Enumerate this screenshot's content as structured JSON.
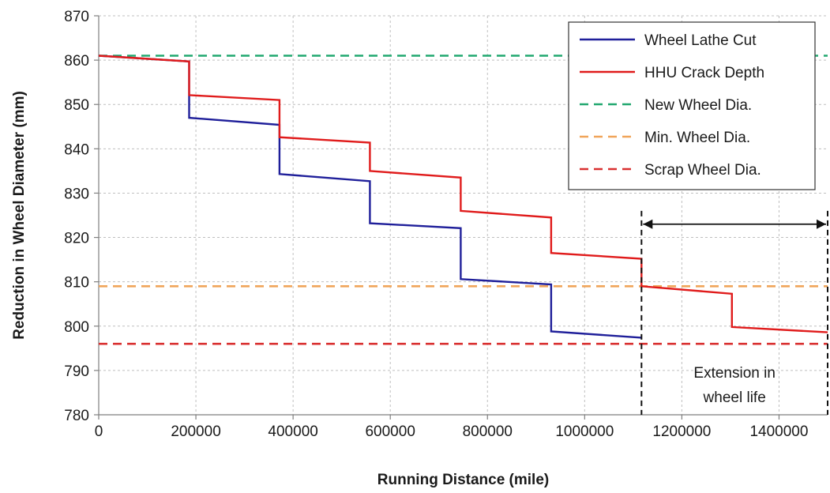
{
  "chart_data": {
    "type": "line",
    "title": "",
    "xlabel": "Running Distance (mile)",
    "ylabel": "Reduction in Wheel Diameter (mm)",
    "xlim": [
      0,
      1500000
    ],
    "ylim": [
      780,
      870
    ],
    "x_ticks": [
      {
        "value": 0,
        "label": "0"
      },
      {
        "value": 200000,
        "label": "200000"
      },
      {
        "value": 400000,
        "label": "400000"
      },
      {
        "value": 600000,
        "label": "600000"
      },
      {
        "value": 800000,
        "label": "800000"
      },
      {
        "value": 1000000,
        "label": "1000000"
      },
      {
        "value": 1200000,
        "label": "1200000"
      },
      {
        "value": 1400000,
        "label": "1400000"
      }
    ],
    "y_ticks": [
      {
        "value": 780,
        "label": "780"
      },
      {
        "value": 790,
        "label": "790"
      },
      {
        "value": 800,
        "label": "800"
      },
      {
        "value": 810,
        "label": "810"
      },
      {
        "value": 820,
        "label": "820"
      },
      {
        "value": 830,
        "label": "830"
      },
      {
        "value": 840,
        "label": "840"
      },
      {
        "value": 850,
        "label": "850"
      },
      {
        "value": 860,
        "label": "860"
      },
      {
        "value": 870,
        "label": "870"
      }
    ],
    "grid": "dashed",
    "legend_position": "top-right",
    "series": [
      {
        "name": "Wheel Lathe Cut",
        "color": "#1f1f9a",
        "dash": "solid",
        "points": [
          [
            0,
            861
          ],
          [
            186000,
            859.7
          ],
          [
            186000,
            847
          ],
          [
            372000,
            845.4
          ],
          [
            372000,
            834.3
          ],
          [
            558000,
            832.7
          ],
          [
            558000,
            823.2
          ],
          [
            745000,
            822.1
          ],
          [
            745000,
            810.6
          ],
          [
            931000,
            809.4
          ],
          [
            931000,
            798.8
          ],
          [
            1117000,
            797.4
          ]
        ]
      },
      {
        "name": "HHU Crack Depth",
        "color": "#e01b1b",
        "dash": "solid",
        "points": [
          [
            0,
            861
          ],
          [
            186000,
            859.7
          ],
          [
            186000,
            852.1
          ],
          [
            372000,
            851
          ],
          [
            372000,
            842.6
          ],
          [
            558000,
            841.4
          ],
          [
            558000,
            835
          ],
          [
            745000,
            833.5
          ],
          [
            745000,
            826
          ],
          [
            931000,
            824.5
          ],
          [
            931000,
            816.5
          ],
          [
            1117000,
            815.2
          ],
          [
            1117000,
            809
          ],
          [
            1303000,
            807.3
          ],
          [
            1303000,
            799.8
          ],
          [
            1500000,
            798.6
          ]
        ]
      },
      {
        "name": "New Wheel Dia.",
        "color": "#22a870",
        "dash": "dashed",
        "points": [
          [
            0,
            861
          ],
          [
            1500000,
            861
          ]
        ]
      },
      {
        "name": "Min. Wheel Dia.",
        "color": "#f0a55a",
        "dash": "dashed",
        "points": [
          [
            0,
            809
          ],
          [
            1500000,
            809
          ]
        ]
      },
      {
        "name": "Scrap Wheel Dia.",
        "color": "#d93030",
        "dash": "dashed",
        "points": [
          [
            0,
            796
          ],
          [
            1500000,
            796
          ]
        ]
      }
    ],
    "annotations": {
      "text_lines": [
        "Extension in",
        "wheel life"
      ],
      "markers_x": [
        1117000,
        1500000
      ],
      "arrow_y": 823
    }
  }
}
